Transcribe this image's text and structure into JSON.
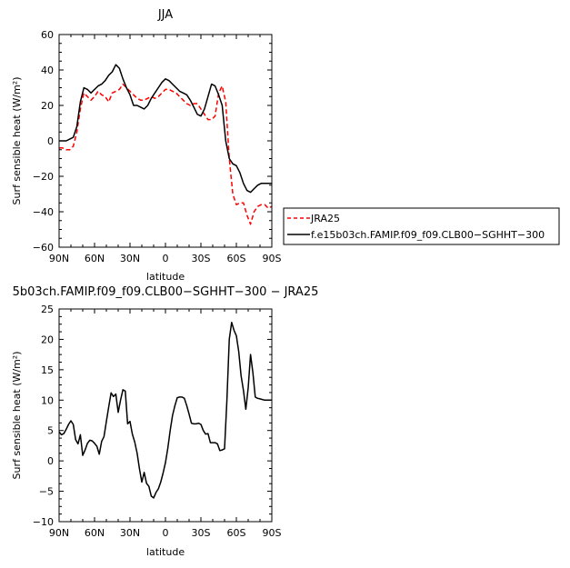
{
  "chart_data": [
    {
      "type": "line",
      "title": "JJA",
      "xlabel": "latitude",
      "ylabel": "Surf sensible heat (W/m²)",
      "xlim": [
        90,
        -90
      ],
      "ylim": [
        -60,
        60
      ],
      "x_ticks": [
        90,
        60,
        30,
        0,
        -30,
        -60,
        -90
      ],
      "x_tick_labels": [
        "90N",
        "60N",
        "30N",
        "0",
        "30S",
        "60S",
        "90S"
      ],
      "y_ticks": [
        -60,
        -40,
        -20,
        0,
        20,
        40,
        60
      ],
      "y_tick_labels": [
        "−60",
        "−40",
        "−20",
        "0",
        "20",
        "40",
        "60"
      ],
      "legend_position": "right",
      "series": [
        {
          "name": "JRA25",
          "color": "#ff0000",
          "dash": "dashed",
          "x": [
            90,
            87,
            84,
            81,
            78,
            75,
            72,
            69,
            66,
            63,
            60,
            57,
            54,
            51,
            48,
            45,
            42,
            39,
            36,
            33,
            30,
            27,
            24,
            21,
            18,
            15,
            12,
            9,
            6,
            3,
            0,
            -3,
            -6,
            -9,
            -12,
            -15,
            -18,
            -21,
            -24,
            -27,
            -30,
            -33,
            -36,
            -39,
            -42,
            -45,
            -48,
            -51,
            -54,
            -57,
            -60,
            -63,
            -66,
            -69,
            -72,
            -75,
            -78,
            -81,
            -84,
            -87,
            -90
          ],
          "values": [
            -4,
            -4,
            -5,
            -5,
            -3,
            5,
            18,
            27,
            25,
            23,
            25,
            28,
            26,
            25,
            22,
            27,
            28,
            29,
            32,
            30,
            28,
            26,
            24,
            23,
            23,
            24,
            25,
            24,
            25,
            27,
            29,
            29,
            28,
            27,
            25,
            23,
            21,
            20,
            21,
            21,
            18,
            15,
            12,
            12,
            14,
            27,
            31,
            22,
            -10,
            -30,
            -36,
            -35,
            -35,
            -42,
            -47,
            -40,
            -37,
            -36,
            -36,
            -38,
            -37
          ]
        },
        {
          "name": "f.e15b03ch.FAMIP.f09_f09.CLB00−SGHHT−300",
          "color": "#000000",
          "dash": "solid",
          "x": [
            90,
            87,
            84,
            81,
            78,
            75,
            72,
            69,
            66,
            63,
            60,
            57,
            54,
            51,
            48,
            45,
            42,
            39,
            36,
            33,
            30,
            27,
            24,
            21,
            18,
            15,
            12,
            9,
            6,
            3,
            0,
            -3,
            -6,
            -9,
            -12,
            -15,
            -18,
            -21,
            -24,
            -27,
            -30,
            -33,
            -36,
            -39,
            -42,
            -45,
            -48,
            -51,
            -54,
            -57,
            -60,
            -63,
            -66,
            -69,
            -72,
            -75,
            -78,
            -81,
            -84,
            -87,
            -90
          ],
          "values": [
            0,
            0,
            0,
            1,
            2,
            8,
            22,
            30,
            29,
            27,
            29,
            31,
            32,
            34,
            37,
            39,
            43,
            41,
            35,
            30,
            26,
            20,
            20,
            19,
            18,
            20,
            24,
            27,
            30,
            33,
            35,
            34,
            32,
            30,
            28,
            27,
            26,
            23,
            19,
            15,
            14,
            18,
            25,
            32,
            31,
            26,
            20,
            0,
            -10,
            -13,
            -14,
            -18,
            -24,
            -28,
            -29,
            -27,
            -25,
            -24,
            -24,
            -24,
            -24
          ]
        }
      ]
    },
    {
      "type": "line",
      "title": "5b03ch.FAMIP.f09_f09.CLB00−SGHHT−300 − JRA25",
      "xlabel": "latitude",
      "ylabel": "Surf sensible heat (W/m²)",
      "xlim": [
        90,
        -90
      ],
      "ylim": [
        -10,
        25
      ],
      "x_ticks": [
        90,
        60,
        30,
        0,
        -30,
        -60,
        -90
      ],
      "x_tick_labels": [
        "90N",
        "60N",
        "30N",
        "0",
        "30S",
        "60S",
        "90S"
      ],
      "y_ticks": [
        -10,
        -5,
        0,
        5,
        10,
        15,
        20,
        25
      ],
      "y_tick_labels": [
        "−10",
        "−5",
        "0",
        "5",
        "10",
        "15",
        "20",
        "25"
      ],
      "series": [
        {
          "color": "#000000",
          "x": [
            90,
            88,
            86,
            84,
            82,
            80,
            78,
            76,
            74,
            72,
            70,
            68,
            66,
            64,
            62,
            60,
            58,
            56,
            54,
            52,
            50,
            48,
            46,
            44,
            42,
            40,
            38,
            36,
            34,
            32,
            30,
            28,
            26,
            24,
            22,
            20,
            18,
            16,
            14,
            12,
            10,
            8,
            6,
            4,
            2,
            0,
            -2,
            -4,
            -6,
            -8,
            -10,
            -12,
            -14,
            -16,
            -18,
            -20,
            -22,
            -24,
            -26,
            -28,
            -30,
            -32,
            -34,
            -36,
            -38,
            -40,
            -42,
            -44,
            -46,
            -48,
            -50,
            -52,
            -54,
            -56,
            -58,
            -60,
            -62,
            -64,
            -66,
            -68,
            -70,
            -72,
            -74,
            -76,
            -78,
            -80,
            -82,
            -84,
            -86,
            -88,
            -90
          ],
          "values": [
            4.8,
            4.3,
            4.5,
            5.2,
            6,
            6.6,
            6,
            3.5,
            2.8,
            4.3,
            0.9,
            1.8,
            2.9,
            3.4,
            3.3,
            2.9,
            2.4,
            1.1,
            3.2,
            4,
            6.5,
            8.9,
            11.2,
            10.6,
            11,
            8,
            10,
            11.7,
            11.5,
            6.1,
            6.5,
            4.4,
            3.1,
            1.3,
            -1.3,
            -3.5,
            -1.9,
            -3.7,
            -4.2,
            -5.8,
            -6.1,
            -5.2,
            -4.6,
            -3.5,
            -2,
            -0.3,
            2.1,
            5,
            7.5,
            9.1,
            10.4,
            10.5,
            10.5,
            10.3,
            9.1,
            7.7,
            6.2,
            6.1,
            6.1,
            6.2,
            6,
            5,
            4.4,
            4.5,
            3,
            3,
            3,
            2.8,
            1.7,
            1.8,
            2,
            10,
            20,
            22.8,
            21.5,
            20.6,
            18,
            14,
            11.6,
            8.5,
            12,
            17.5,
            14.5,
            10.5,
            10.3,
            10.2,
            10.1,
            10,
            10,
            10,
            10
          ]
        }
      ]
    }
  ]
}
